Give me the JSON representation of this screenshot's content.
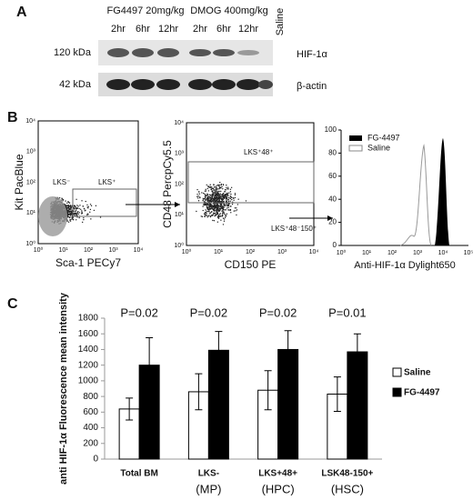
{
  "panel_a": {
    "letter": "A",
    "groups": [
      "FG4497 20mg/kg",
      "DMOG 400mg/kg"
    ],
    "lanes": [
      "2hr",
      "6hr",
      "12hr",
      "2hr",
      "6hr",
      "12hr",
      "Saline"
    ],
    "rows": [
      {
        "size": "120 kDa",
        "protein": "HIF-1α"
      },
      {
        "size": "42 kDa",
        "protein": "β-actin"
      }
    ]
  },
  "panel_b": {
    "letter": "B",
    "plot1": {
      "ylabel": "Kit PacBlue",
      "xlabel": "Sca-1 PECy7",
      "gates": [
        "LKS⁻",
        "LKS⁺"
      ],
      "ticks": [
        "10⁰",
        "10¹",
        "10²",
        "10³",
        "10⁴"
      ]
    },
    "plot2": {
      "ylabel": "CD48 PercpCy5.5",
      "xlabel": "CD150 PE",
      "gates": [
        "LKS⁺48⁺",
        "LKS⁺48⁻150⁺"
      ],
      "ticks": [
        "10⁰",
        "10¹",
        "10²",
        "10³",
        "10⁴"
      ]
    },
    "plot3": {
      "xlabel": "Anti-HIF-1α Dylight650",
      "legend": [
        "FG-4497",
        "Saline"
      ],
      "ylim": [
        0,
        100
      ],
      "yticks": [
        0,
        20,
        40,
        60,
        80,
        100
      ],
      "xticks": [
        "10⁰",
        "10¹",
        "10²",
        "10³",
        "10⁴",
        "10⁵"
      ]
    }
  },
  "chart_data": {
    "type": "bar",
    "letter": "C",
    "ylabel": "anti HIF-1α Fluorescence mean intensity",
    "categories": [
      "Total BM",
      "LKS-",
      "LKS+48+",
      "LSK48-150+"
    ],
    "sublabels": [
      null,
      "(MP)",
      "(HPC)",
      "(HSC)"
    ],
    "annotations": [
      "P=0.02",
      "P=0.02",
      "P=0.02",
      "P=0.01"
    ],
    "series": [
      {
        "name": "Saline",
        "color": "#ffffff",
        "values": [
          640,
          860,
          880,
          830
        ],
        "errors": [
          140,
          230,
          250,
          220
        ]
      },
      {
        "name": "FG-4497",
        "color": "#000000",
        "values": [
          1200,
          1390,
          1400,
          1370
        ],
        "errors": [
          350,
          240,
          240,
          230
        ]
      }
    ],
    "ylim": [
      0,
      1800
    ],
    "yticks": [
      0,
      200,
      400,
      600,
      800,
      1000,
      1200,
      1400,
      1600,
      1800
    ],
    "legend": "right"
  }
}
